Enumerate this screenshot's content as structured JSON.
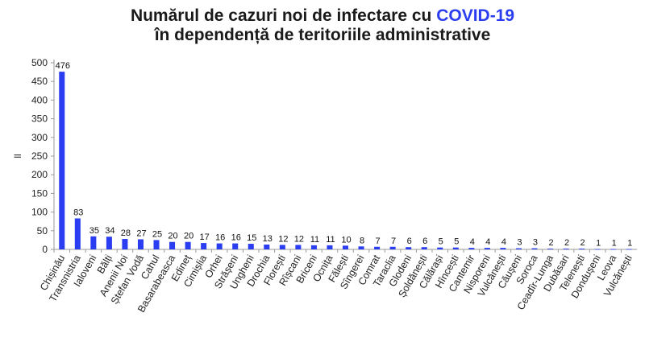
{
  "title": {
    "line1_prefix": "Numărul de cazuri noi de infectare cu ",
    "line1_accent": "COVID-19",
    "line2": "în dependență de teritoriile administrative"
  },
  "colors": {
    "bar": "#2b3df0",
    "accent": "#2b3df0",
    "axis": "#999999"
  },
  "chart_data": {
    "type": "bar",
    "title": "Numărul de cazuri noi de infectare cu COVID-19 în dependență de teritoriile administrative",
    "xlabel": "",
    "ylabel": "ll",
    "ylim": [
      0,
      500
    ],
    "yticks": [
      0,
      50,
      100,
      150,
      200,
      250,
      300,
      350,
      400,
      450,
      500
    ],
    "grid": false,
    "categories": [
      "Chișinău",
      "Transnistria",
      "Ialoveni",
      "Bălți",
      "Anenii Noi",
      "Ștefan Vodă",
      "Cahul",
      "Basarabeasca",
      "Edineț",
      "Cimișlia",
      "Orhei",
      "Strășeni",
      "Ungheni",
      "Drochia",
      "Florești",
      "Rîșcani",
      "Briceni",
      "Ocnița",
      "Fălești",
      "Sîngerei",
      "Comrat",
      "Taraclia",
      "Glodeni",
      "Șoldănești",
      "Călărași",
      "Hîncești",
      "Cantemir",
      "Nisporeni",
      "Vulcănești",
      "Căușeni",
      "Soroca",
      "Ceadîr-Lunga",
      "Dubăsari",
      "Telenești",
      "Dondușeni",
      "Leova",
      "Vulcănești"
    ],
    "values": [
      476,
      83,
      35,
      34,
      28,
      27,
      25,
      20,
      20,
      17,
      16,
      16,
      15,
      13,
      12,
      12,
      11,
      11,
      10,
      8,
      7,
      7,
      6,
      6,
      5,
      5,
      4,
      4,
      4,
      3,
      3,
      2,
      2,
      2,
      1,
      1,
      1
    ]
  }
}
